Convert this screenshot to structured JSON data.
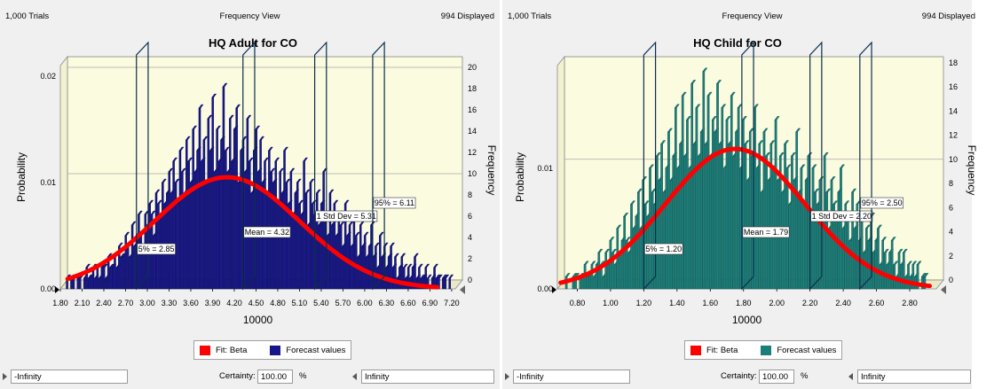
{
  "panels": [
    {
      "trials": "1,000 Trials",
      "view": "Frequency View",
      "displayed": "994 Displayed",
      "bar_color": "#16168c",
      "fit_color": "#ff0000",
      "certainty_label": "Certainty:",
      "certainty_value": "100.00",
      "pct": "%",
      "lower": "-Infinity",
      "upper": "Infinity"
    },
    {
      "trials": "1,000 Trials",
      "view": "Frequency View",
      "displayed": "994 Displayed",
      "bar_color": "#1a7f7b",
      "fit_color": "#ff0000",
      "certainty_label": "Certainty:",
      "certainty_value": "100.00",
      "pct": "%",
      "lower": "-Infinity",
      "upper": "Infinity"
    }
  ],
  "chart_data": [
    {
      "type": "bar",
      "title": "HQ Adult for CO",
      "xlabel": "10000",
      "ylabel": "Probability",
      "y2label": "Frequency",
      "xlim": [
        1.8,
        7.25
      ],
      "x_ticks": [
        "1.80",
        "2.10",
        "2.40",
        "2.70",
        "3.00",
        "3.30",
        "3.60",
        "3.90",
        "4.20",
        "4.50",
        "4.80",
        "5.10",
        "5.40",
        "5.70",
        "6.00",
        "6.30",
        "6.60",
        "6.90",
        "7.20"
      ],
      "y_ticks": [
        "0.00",
        "0.01",
        "0.02"
      ],
      "y2_ticks": [
        "0",
        "2",
        "4",
        "6",
        "8",
        "10",
        "12",
        "14",
        "16",
        "18",
        "20"
      ],
      "ylim": [
        0,
        0.021
      ],
      "y2lim": [
        0,
        21
      ],
      "grid": true,
      "legend": [
        "Fit: Beta",
        "Forecast values"
      ],
      "legend_position": "bottom",
      "fit": {
        "name": "Fit: Beta",
        "mean": 4.1,
        "sd": 1.0,
        "peak_freq": 10.5,
        "x_range": [
          1.9,
          7.0
        ]
      },
      "markers": [
        {
          "x": 2.85,
          "label": "5% = 2.85"
        },
        {
          "x": 4.32,
          "label": "Mean = 4.32"
        },
        {
          "x": 5.31,
          "label": "1 Std Dev = 5.31"
        },
        {
          "x": 6.11,
          "label": "95% = 6.11"
        }
      ],
      "bins_x": [
        1.82,
        1.85,
        1.88,
        1.91,
        1.94,
        1.97,
        2.0,
        2.03,
        2.06,
        2.09,
        2.12,
        2.15,
        2.18,
        2.21,
        2.24,
        2.27,
        2.3,
        2.33,
        2.36,
        2.39,
        2.42,
        2.45,
        2.48,
        2.51,
        2.54,
        2.57,
        2.6,
        2.63,
        2.66,
        2.69,
        2.72,
        2.75,
        2.78,
        2.81,
        2.84,
        2.87,
        2.9,
        2.93,
        2.96,
        2.99,
        3.02,
        3.05,
        3.08,
        3.11,
        3.14,
        3.17,
        3.2,
        3.23,
        3.26,
        3.29,
        3.32,
        3.35,
        3.38,
        3.41,
        3.44,
        3.47,
        3.5,
        3.53,
        3.56,
        3.59,
        3.62,
        3.65,
        3.68,
        3.71,
        3.74,
        3.77,
        3.8,
        3.83,
        3.86,
        3.89,
        3.92,
        3.95,
        3.98,
        4.01,
        4.04,
        4.07,
        4.1,
        4.13,
        4.16,
        4.19,
        4.22,
        4.25,
        4.28,
        4.31,
        4.34,
        4.37,
        4.4,
        4.43,
        4.46,
        4.49,
        4.52,
        4.55,
        4.58,
        4.61,
        4.64,
        4.67,
        4.7,
        4.73,
        4.76,
        4.79,
        4.82,
        4.85,
        4.88,
        4.91,
        4.94,
        4.97,
        5.0,
        5.03,
        5.06,
        5.09,
        5.12,
        5.15,
        5.18,
        5.21,
        5.24,
        5.27,
        5.3,
        5.33,
        5.36,
        5.39,
        5.42,
        5.45,
        5.48,
        5.51,
        5.54,
        5.57,
        5.6,
        5.63,
        5.66,
        5.69,
        5.72,
        5.75,
        5.78,
        5.81,
        5.84,
        5.87,
        5.9,
        5.93,
        5.96,
        5.99,
        6.02,
        6.05,
        6.08,
        6.11,
        6.14,
        6.17,
        6.2,
        6.23,
        6.26,
        6.29,
        6.32,
        6.35,
        6.38,
        6.41,
        6.44,
        6.47,
        6.5,
        6.53,
        6.56,
        6.59,
        6.62,
        6.65,
        6.68,
        6.71,
        6.74,
        6.77,
        6.8,
        6.83,
        6.86,
        6.89,
        6.92,
        6.95,
        6.98,
        7.01,
        7.04,
        7.07,
        7.1,
        7.13,
        7.16,
        7.19
      ],
      "frequencies": [
        0,
        0,
        1,
        0,
        1,
        1,
        0,
        1,
        1,
        0,
        1,
        2,
        1,
        1,
        2,
        1,
        2,
        1,
        2,
        2,
        1,
        3,
        2,
        2,
        3,
        2,
        4,
        3,
        3,
        5,
        4,
        3,
        6,
        4,
        5,
        7,
        5,
        4,
        7,
        6,
        8,
        7,
        5,
        9,
        8,
        7,
        10,
        8,
        9,
        11,
        9,
        12,
        10,
        8,
        13,
        11,
        9,
        14,
        12,
        10,
        15,
        11,
        13,
        17,
        12,
        14,
        10,
        16,
        13,
        18,
        11,
        15,
        12,
        14,
        19,
        13,
        11,
        16,
        12,
        15,
        17,
        10,
        13,
        14,
        11,
        16,
        12,
        9,
        13,
        15,
        11,
        14,
        10,
        12,
        9,
        13,
        11,
        10,
        12,
        8,
        11,
        9,
        13,
        10,
        8,
        11,
        7,
        9,
        10,
        8,
        7,
        12,
        9,
        6,
        10,
        8,
        7,
        9,
        6,
        8,
        11,
        7,
        5,
        9,
        6,
        8,
        5,
        7,
        6,
        4,
        8,
        5,
        6,
        4,
        7,
        5,
        3,
        6,
        4,
        5,
        3,
        4,
        6,
        3,
        4,
        2,
        5,
        3,
        4,
        2,
        3,
        4,
        2,
        3,
        1,
        2,
        3,
        2,
        1,
        2,
        1,
        2,
        3,
        1,
        2,
        1,
        1,
        2,
        1,
        0,
        1,
        2,
        1,
        1,
        0,
        1,
        1,
        0,
        1,
        0
      ]
    },
    {
      "type": "bar",
      "title": "HQ Child for CO",
      "xlabel": "10000",
      "ylabel": "Probability",
      "y2label": "Frequency",
      "xlim": [
        0.68,
        2.96
      ],
      "x_ticks": [
        "0.80",
        "1.00",
        "1.20",
        "1.40",
        "1.60",
        "1.80",
        "2.00",
        "2.20",
        "2.40",
        "2.60",
        "2.80"
      ],
      "y_ticks": [
        "0.00",
        "0.01"
      ],
      "y2_ticks": [
        "0",
        "2",
        "4",
        "6",
        "8",
        "10",
        "12",
        "14",
        "16",
        "18"
      ],
      "ylim": [
        0,
        0.0185
      ],
      "y2lim": [
        0,
        18.5
      ],
      "grid": true,
      "legend": [
        "Fit: Beta",
        "Forecast values"
      ],
      "legend_position": "bottom",
      "fit": {
        "name": "Fit: Beta",
        "mean": 1.75,
        "sd": 0.42,
        "peak_freq": 11.6,
        "x_range": [
          0.7,
          2.92
        ]
      },
      "markers": [
        {
          "x": 1.2,
          "label": "5% = 1.20"
        },
        {
          "x": 1.79,
          "label": "Mean = 1.79"
        },
        {
          "x": 2.2,
          "label": "1 Std Dev = 2.20"
        },
        {
          "x": 2.5,
          "label": "95% = 2.50"
        }
      ],
      "bins_x": [
        0.7,
        0.714,
        0.728,
        0.742,
        0.756,
        0.77,
        0.784,
        0.798,
        0.812,
        0.826,
        0.84,
        0.854,
        0.868,
        0.882,
        0.896,
        0.91,
        0.924,
        0.938,
        0.952,
        0.966,
        0.98,
        0.994,
        1.008,
        1.022,
        1.036,
        1.05,
        1.064,
        1.078,
        1.092,
        1.106,
        1.12,
        1.134,
        1.148,
        1.162,
        1.176,
        1.19,
        1.204,
        1.218,
        1.232,
        1.246,
        1.26,
        1.274,
        1.288,
        1.302,
        1.316,
        1.33,
        1.344,
        1.358,
        1.372,
        1.386,
        1.4,
        1.414,
        1.428,
        1.442,
        1.456,
        1.47,
        1.484,
        1.498,
        1.512,
        1.526,
        1.54,
        1.554,
        1.568,
        1.582,
        1.596,
        1.61,
        1.624,
        1.638,
        1.652,
        1.666,
        1.68,
        1.694,
        1.708,
        1.722,
        1.736,
        1.75,
        1.764,
        1.778,
        1.792,
        1.806,
        1.82,
        1.834,
        1.848,
        1.862,
        1.876,
        1.89,
        1.904,
        1.918,
        1.932,
        1.946,
        1.96,
        1.974,
        1.988,
        2.002,
        2.016,
        2.03,
        2.044,
        2.058,
        2.072,
        2.086,
        2.1,
        2.114,
        2.128,
        2.142,
        2.156,
        2.17,
        2.184,
        2.198,
        2.212,
        2.226,
        2.24,
        2.254,
        2.268,
        2.282,
        2.296,
        2.31,
        2.324,
        2.338,
        2.352,
        2.366,
        2.38,
        2.394,
        2.408,
        2.422,
        2.436,
        2.45,
        2.464,
        2.478,
        2.492,
        2.506,
        2.52,
        2.534,
        2.548,
        2.562,
        2.576,
        2.59,
        2.604,
        2.618,
        2.632,
        2.646,
        2.66,
        2.674,
        2.688,
        2.702,
        2.716,
        2.73,
        2.744,
        2.758,
        2.772,
        2.786,
        2.8,
        2.814,
        2.828,
        2.842,
        2.856,
        2.87,
        2.884,
        2.898,
        2.912
      ],
      "frequencies": [
        0,
        0,
        1,
        0,
        0,
        1,
        1,
        0,
        1,
        1,
        2,
        1,
        1,
        2,
        1,
        2,
        3,
        2,
        1,
        3,
        2,
        4,
        3,
        2,
        5,
        3,
        4,
        6,
        4,
        3,
        7,
        5,
        6,
        8,
        5,
        9,
        7,
        6,
        10,
        8,
        7,
        11,
        9,
        12,
        8,
        10,
        13,
        9,
        11,
        15,
        10,
        12,
        16,
        11,
        14,
        10,
        17,
        12,
        15,
        11,
        13,
        18,
        12,
        16,
        11,
        14,
        13,
        17,
        12,
        15,
        10,
        14,
        12,
        16,
        11,
        13,
        15,
        10,
        14,
        12,
        9,
        13,
        11,
        15,
        10,
        12,
        8,
        13,
        11,
        9,
        12,
        10,
        14,
        9,
        11,
        8,
        12,
        10,
        7,
        11,
        9,
        13,
        8,
        10,
        7,
        9,
        11,
        6,
        10,
        8,
        7,
        9,
        6,
        11,
        8,
        5,
        9,
        7,
        6,
        8,
        10,
        5,
        7,
        6,
        4,
        8,
        5,
        7,
        4,
        6,
        3,
        5,
        4,
        6,
        3,
        4,
        5,
        2,
        4,
        3,
        2,
        3,
        4,
        2,
        1,
        3,
        2,
        3,
        1,
        2,
        1,
        2,
        1,
        2,
        0,
        1,
        1
      ]
    }
  ]
}
